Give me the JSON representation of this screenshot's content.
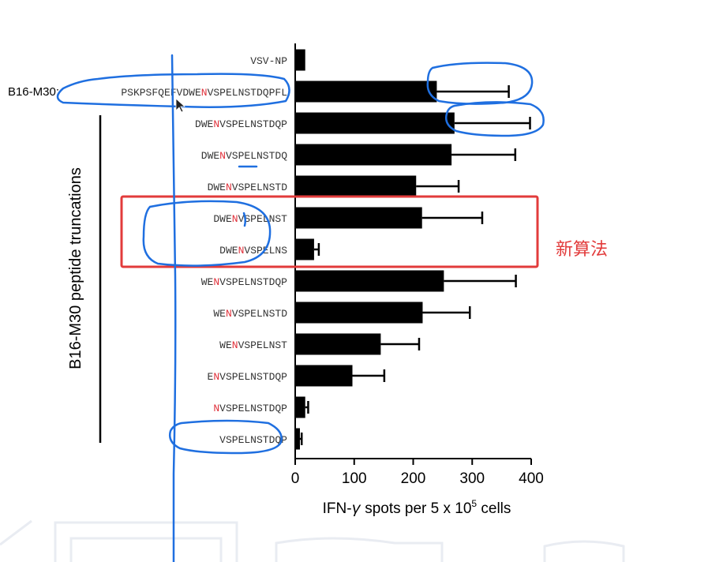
{
  "chart_data": {
    "type": "bar",
    "orientation": "horizontal",
    "ylabel": "B16-M30 peptide truncations",
    "xlabel_parts": {
      "prefix": "IFN-",
      "gamma": "γ",
      "mid": " spots per 5 x 10",
      "sup": "5",
      "suffix": " cells"
    },
    "xlim": [
      0,
      400
    ],
    "xticks": [
      0,
      100,
      200,
      300,
      400
    ],
    "prefix_label": "B16-M30:",
    "categories": [
      {
        "pre": "VSV-NP",
        "mut": "",
        "post": ""
      },
      {
        "pre": "PSKPSFQEFVDWE",
        "mut": "N",
        "post": "VSPELNSTDQPFL"
      },
      {
        "pre": "DWE",
        "mut": "N",
        "post": "VSPELNSTDQP"
      },
      {
        "pre": "DWE",
        "mut": "N",
        "post": "VSPELNSTDQ"
      },
      {
        "pre": "DWE",
        "mut": "N",
        "post": "VSPELNSTD"
      },
      {
        "pre": "DWE",
        "mut": "N",
        "post": "VSPELNST"
      },
      {
        "pre": "DWE",
        "mut": "N",
        "post": "VSPELNS"
      },
      {
        "pre": "WE",
        "mut": "N",
        "post": "VSPELNSTDQP"
      },
      {
        "pre": "WE",
        "mut": "N",
        "post": "VSPELNSTD"
      },
      {
        "pre": "WE",
        "mut": "N",
        "post": "VSPELNST"
      },
      {
        "pre": "E",
        "mut": "N",
        "post": "VSPELNSTDQP"
      },
      {
        "pre": "",
        "mut": "N",
        "post": "VSPELNSTDQP"
      },
      {
        "pre": "",
        "mut": "",
        "post": "VSPELNSTDQP"
      }
    ],
    "values": [
      17,
      240,
      270,
      265,
      205,
      215,
      32,
      252,
      216,
      145,
      97,
      17,
      8
    ],
    "errors": [
      0,
      122,
      128,
      108,
      72,
      102,
      8,
      122,
      80,
      65,
      54,
      5,
      3
    ],
    "colors": {
      "bar": "#000000",
      "mutation": "#e0303a",
      "annotation_pen": "#1f6fe0",
      "highlight_box": "#e23b3b"
    },
    "annotation_text": "新算法"
  }
}
